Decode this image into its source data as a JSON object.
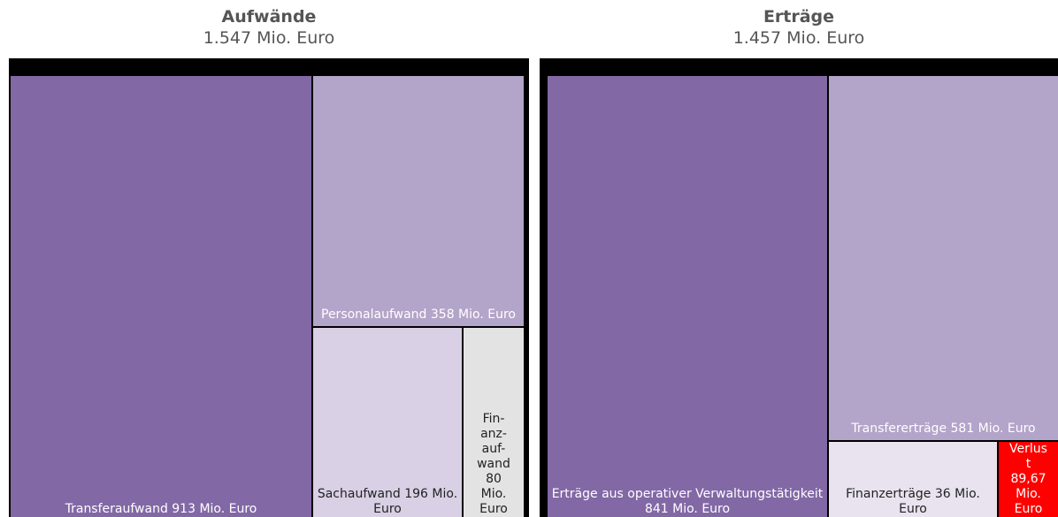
{
  "chart_data": [
    {
      "type": "treemap",
      "title": "Aufwände",
      "subtitle": "1.547 Mio. Euro",
      "tiles": [
        {
          "label": "Transferaufwand 913 Mio. Euro",
          "value": 913,
          "color": "#8268a5",
          "text_color": "#ffffff"
        },
        {
          "label": "Personalaufwand 358 Mio. Euro",
          "value": 358,
          "color": "#b3a4c9",
          "text_color": "#ffffff"
        },
        {
          "label": "Sachaufwand 196 Mio. Euro",
          "value": 196,
          "color": "#d9d0e5",
          "text_color": "#222222"
        },
        {
          "label": "Fin-anz-auf-wand 80 Mio. Euro",
          "value": 80,
          "color": "#e3e3e3",
          "text_color": "#222222"
        }
      ]
    },
    {
      "type": "treemap",
      "title": "Erträge",
      "subtitle": "1.457 Mio. Euro",
      "tiles": [
        {
          "label": "Erträge aus operativer Verwaltungstätigkeit 841 Mio. Euro",
          "value": 841,
          "color": "#8268a5",
          "text_color": "#ffffff"
        },
        {
          "label": "Transfererträge 581 Mio. Euro",
          "value": 581,
          "color": "#b3a4c9",
          "text_color": "#ffffff"
        },
        {
          "label": "Finanzerträge 36 Mio. Euro",
          "value": 36,
          "color": "#e8e3ef",
          "text_color": "#222222"
        },
        {
          "label": "Verlust 89,67 Mio. Euro",
          "value": 89.67,
          "color": "#ff0000",
          "text_color": "#ffffff"
        }
      ]
    }
  ]
}
